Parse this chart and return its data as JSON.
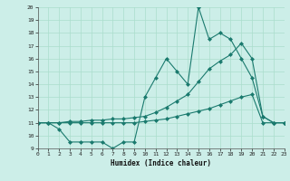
{
  "title": "",
  "xlabel": "Humidex (Indice chaleur)",
  "bg_color": "#cceee8",
  "grid_color": "#aaddcc",
  "line_color": "#1a7a6e",
  "xmin": 0,
  "xmax": 23,
  "ymin": 9,
  "ymax": 20,
  "xticks": [
    0,
    1,
    2,
    3,
    4,
    5,
    6,
    7,
    8,
    9,
    10,
    11,
    12,
    13,
    14,
    15,
    16,
    17,
    18,
    19,
    20,
    21,
    22,
    23
  ],
  "yticks": [
    9,
    10,
    11,
    12,
    13,
    14,
    15,
    16,
    17,
    18,
    19,
    20
  ],
  "line1_x": [
    0,
    1,
    2,
    3,
    4,
    5,
    6,
    7,
    8,
    9,
    10,
    11,
    12,
    13,
    14,
    15,
    16,
    17,
    18,
    19,
    20,
    21,
    22,
    23
  ],
  "line1_y": [
    11,
    11,
    10.5,
    9.5,
    9.5,
    9.5,
    9.5,
    9.0,
    9.5,
    9.5,
    13.0,
    14.5,
    16.0,
    15.0,
    14.0,
    20.0,
    17.5,
    18.0,
    17.5,
    16.0,
    14.5,
    11.5,
    11.0,
    11.0
  ],
  "line2_x": [
    0,
    1,
    2,
    3,
    4,
    5,
    6,
    7,
    8,
    9,
    10,
    11,
    12,
    13,
    14,
    15,
    16,
    17,
    18,
    19,
    20,
    21,
    22,
    23
  ],
  "line2_y": [
    11,
    11,
    11,
    11.1,
    11.1,
    11.2,
    11.2,
    11.3,
    11.3,
    11.4,
    11.5,
    11.8,
    12.2,
    12.7,
    13.2,
    14.2,
    15.2,
    15.8,
    16.3,
    17.2,
    16.0,
    11.5,
    11.0,
    11.0
  ],
  "line3_x": [
    0,
    1,
    2,
    3,
    4,
    5,
    6,
    7,
    8,
    9,
    10,
    11,
    12,
    13,
    14,
    15,
    16,
    17,
    18,
    19,
    20,
    21,
    22,
    23
  ],
  "line3_y": [
    11,
    11,
    11,
    11,
    11,
    11,
    11,
    11,
    11,
    11,
    11.1,
    11.2,
    11.3,
    11.5,
    11.7,
    11.9,
    12.1,
    12.4,
    12.7,
    13.0,
    13.2,
    11.0,
    11.0,
    11.0
  ]
}
